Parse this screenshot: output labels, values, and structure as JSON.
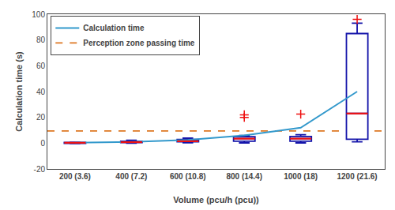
{
  "chart_data": {
    "type": "box",
    "xlabel": "Volume (pcu/h (pcu))",
    "ylabel": "Calculation time (s)",
    "categories": [
      "200 (3.6)",
      "400 (7.2)",
      "600 (10.8)",
      "800 (14.4)",
      "1000 (18)",
      "1200 (21.6)"
    ],
    "ylim": [
      -20,
      100
    ],
    "yticks": [
      -20,
      0,
      20,
      40,
      60,
      80,
      100
    ],
    "grid": false,
    "legend": "upper left",
    "series": [
      {
        "name": "Calculation time",
        "type": "line",
        "color": "#3399CC",
        "values": [
          0.3,
          1.0,
          2.5,
          6.0,
          12.0,
          40.0
        ]
      }
    ],
    "boxes": {
      "color": "#1414AA",
      "q1": [
        -0.2,
        0.5,
        1.0,
        1.5,
        1.5,
        3.0
      ],
      "median": {
        "values": [
          0.3,
          0.8,
          1.5,
          3.5,
          3.5,
          23.0
        ],
        "color": "#EE1111"
      },
      "q3": [
        0.5,
        1.5,
        2.8,
        5.0,
        5.2,
        85.0
      ],
      "whislo": [
        -0.3,
        0.0,
        0.3,
        0.2,
        0.2,
        1.0
      ],
      "whishi": [
        0.7,
        2.2,
        4.0,
        6.0,
        6.5,
        93.0
      ],
      "fliers": {
        "values": [
          [],
          [],
          [],
          [
            20.0,
            22.0
          ],
          [
            22.5
          ],
          [
            96.0
          ]
        ],
        "color": "#EE1111",
        "marker": "plus"
      }
    },
    "reference_line": {
      "name": "Perception zone passing time",
      "value": 9.5,
      "color": "#DD7722",
      "line_style": "dashed"
    }
  }
}
